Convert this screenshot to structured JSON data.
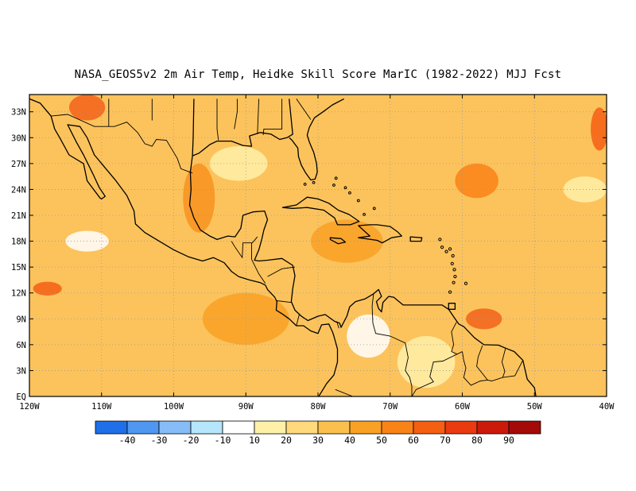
{
  "title": "NASA_GEOS5v2  2m Air Temp, Heidke Skill Score MarIC (1982-2022) MJJ Fcst",
  "map": {
    "lon_range": [
      -120,
      -40
    ],
    "lat_range": [
      0,
      35
    ],
    "lat_labels": [
      "EQ",
      "3N",
      "6N",
      "9N",
      "12N",
      "15N",
      "18N",
      "21N",
      "24N",
      "27N",
      "30N",
      "33N"
    ],
    "lat_values": [
      0,
      3,
      6,
      9,
      12,
      15,
      18,
      21,
      24,
      27,
      30,
      33
    ],
    "lon_labels": [
      "120W",
      "110W",
      "100W",
      "90W",
      "80W",
      "70W",
      "60W",
      "50W",
      "40W"
    ],
    "lon_values": [
      -120,
      -110,
      -100,
      -90,
      -80,
      -70,
      -60,
      -50,
      -40
    ],
    "grid": "dotted",
    "base_fill_color": "#fcc35c"
  },
  "colorbar": {
    "colors": [
      "#1f6fe8",
      "#4f97f0",
      "#86bdf8",
      "#b5e6fb",
      "#ffffff",
      "#fff0a8",
      "#ffd97c",
      "#fbbf4d",
      "#f9a125",
      "#f98316",
      "#f45f12",
      "#ea3a10",
      "#cc1a0a",
      "#a30a08"
    ],
    "labels": [
      "-40",
      "-30",
      "-20",
      "-10",
      "10",
      "20",
      "30",
      "40",
      "50",
      "60",
      "70",
      "80",
      "90"
    ]
  },
  "regions": [
    {
      "name": "texas-gulf-hotspot",
      "color": "#f7921f",
      "lon": -96.5,
      "lat": 23,
      "rlon": 2.2,
      "rlat": 4
    },
    {
      "name": "northwest-mexico-hotspot",
      "color": "#f2621a",
      "lon": -112,
      "lat": 33.5,
      "rlon": 2.5,
      "rlat": 1.5
    },
    {
      "name": "pacific-12n-hotspot",
      "color": "#f45f12",
      "lon": -117.5,
      "lat": 12.5,
      "rlon": 2,
      "rlat": 0.8
    },
    {
      "name": "east-pacific-orange",
      "color": "#f9a125",
      "lon": -90,
      "lat": 9,
      "rlon": 6,
      "rlat": 3
    },
    {
      "name": "atlantic-9n-hotspot",
      "color": "#f2621a",
      "lon": -57,
      "lat": 9,
      "rlon": 2.5,
      "rlat": 1.2
    },
    {
      "name": "atlantic-24n-orange",
      "color": "#f98316",
      "lon": -58,
      "lat": 25,
      "rlon": 3,
      "rlat": 2
    },
    {
      "name": "atlantic-31n-hotspot",
      "color": "#f45f12",
      "lon": -41,
      "lat": 31,
      "rlon": 1.2,
      "rlat": 2.5
    },
    {
      "name": "caribbean-orange",
      "color": "#f9a125",
      "lon": -76,
      "lat": 18,
      "rlon": 5,
      "rlat": 2.5
    },
    {
      "name": "pacific-west-white",
      "color": "#ffffff",
      "lon": -112,
      "lat": 18,
      "rlon": 3,
      "rlat": 1.2
    },
    {
      "name": "colombia-white",
      "color": "#ffffff",
      "lon": -73,
      "lat": 7,
      "rlon": 3,
      "rlat": 2.5
    },
    {
      "name": "gulf-light",
      "color": "#fff0a8",
      "lon": -91,
      "lat": 27,
      "rlon": 4,
      "rlat": 2
    },
    {
      "name": "atlantic-24n-light",
      "color": "#fff0a8",
      "lon": -43,
      "lat": 24,
      "rlon": 3,
      "rlat": 1.5
    },
    {
      "name": "venezuela-light",
      "color": "#fff0a8",
      "lon": -65,
      "lat": 4,
      "rlon": 4,
      "rlat": 3
    }
  ]
}
